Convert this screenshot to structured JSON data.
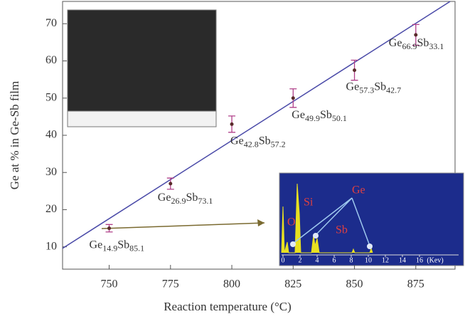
{
  "chart_data": {
    "type": "scatter",
    "x_label": "Reaction temperature (°C)",
    "y_label": "Ge at % in Ge-Sb film",
    "x": [
      750,
      775,
      800,
      825,
      850,
      875
    ],
    "values": [
      15,
      27,
      43,
      50,
      57.5,
      67
    ],
    "errors": [
      1,
      1.5,
      2.2,
      2.5,
      2.7,
      2.8
    ],
    "point_labels": [
      [
        "Ge",
        "14.9",
        "Sb",
        "85.1"
      ],
      [
        "Ge",
        "26.9",
        "Sb",
        "73.1"
      ],
      [
        "Ge",
        "42.8",
        "Sb",
        "57.2"
      ],
      [
        "Ge",
        "49.9",
        "Sb",
        "50.1"
      ],
      [
        "Ge",
        "57.3",
        "Sb",
        "42.7"
      ],
      [
        "Ge",
        "66.9",
        "Sb",
        "33.1"
      ]
    ],
    "color": "#b0408a",
    "fit_line": {
      "x": [
        731,
        889
      ],
      "values": [
        9.6,
        76
      ],
      "color": "#4a4aa8"
    },
    "xlim": [
      731,
      891
    ],
    "ylim": [
      4,
      76
    ],
    "xticks": [
      750,
      775,
      800,
      825,
      850,
      875
    ],
    "yticks": [
      10,
      20,
      30,
      40,
      50,
      60,
      70
    ]
  },
  "eds_inset": {
    "elements": [
      "O",
      "Si",
      "Ge",
      "Sb"
    ],
    "ticks": [
      0,
      2,
      4,
      6,
      8,
      10,
      12,
      14,
      16
    ],
    "unit": "(Kev)"
  }
}
